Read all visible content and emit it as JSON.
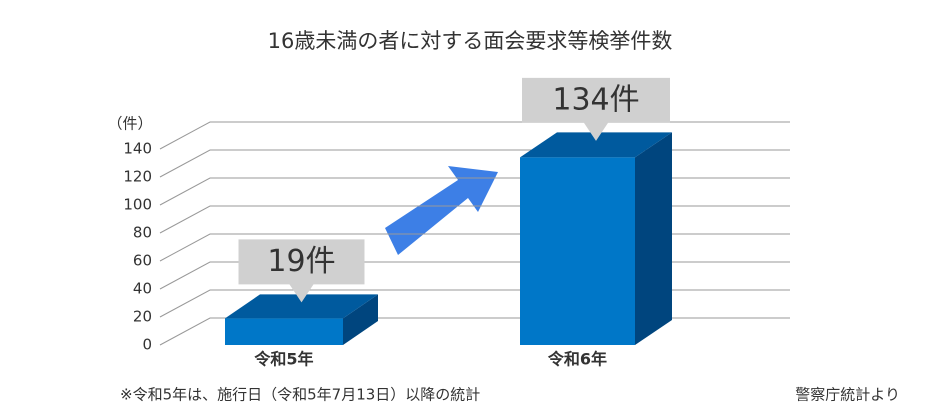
{
  "chart_data": {
    "type": "bar3d",
    "title": "16歳未満の者に対する面会要求等検挙件数",
    "y_unit": "（件）",
    "categories": [
      "令和5年",
      "令和6年"
    ],
    "values": [
      19,
      134
    ],
    "value_labels": [
      "19件",
      "134件"
    ],
    "colors": {
      "front": "#0077c8",
      "top": "#005a9e",
      "side": "#00457e"
    },
    "ylim": [
      0,
      140
    ],
    "yticks": [
      0,
      20,
      40,
      60,
      80,
      100,
      120,
      140
    ],
    "grid": true,
    "footnote": "※令和5年は、施行日（令和5年7月13日）以降の統計",
    "source": "警察庁統計より"
  }
}
